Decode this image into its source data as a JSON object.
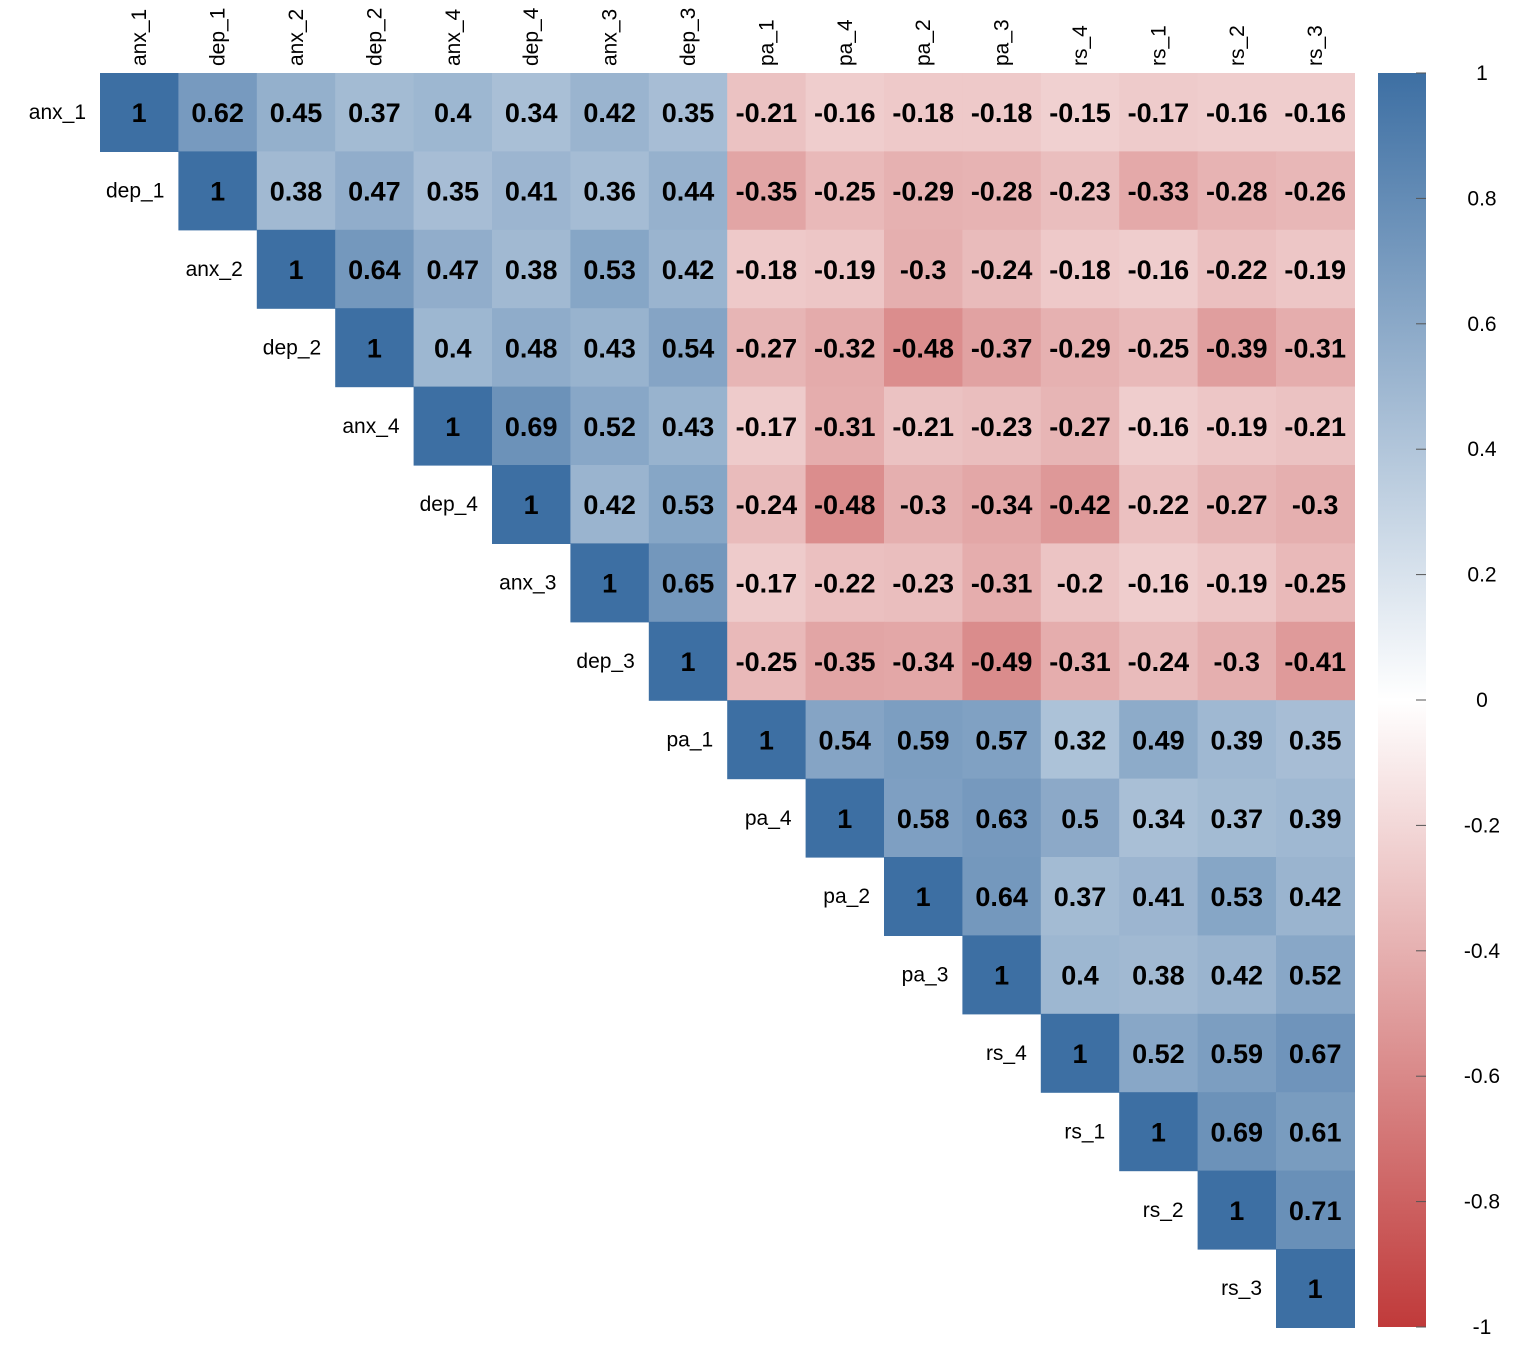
{
  "chart_data": {
    "type": "heatmap",
    "layout": "upper-triangle",
    "variables": [
      "anx_1",
      "dep_1",
      "anx_2",
      "dep_2",
      "anx_4",
      "dep_4",
      "anx_3",
      "dep_3",
      "pa_1",
      "pa_4",
      "pa_2",
      "pa_3",
      "rs_4",
      "rs_1",
      "rs_2",
      "rs_3"
    ],
    "matrix": [
      [
        1,
        0.62,
        0.45,
        0.37,
        0.4,
        0.34,
        0.42,
        0.35,
        -0.21,
        -0.16,
        -0.18,
        -0.18,
        -0.15,
        -0.17,
        -0.16,
        -0.16
      ],
      [
        null,
        1,
        0.38,
        0.47,
        0.35,
        0.41,
        0.36,
        0.44,
        -0.35,
        -0.25,
        -0.29,
        -0.28,
        -0.23,
        -0.33,
        -0.28,
        -0.26
      ],
      [
        null,
        null,
        1,
        0.64,
        0.47,
        0.38,
        0.53,
        0.42,
        -0.18,
        -0.19,
        -0.3,
        -0.24,
        -0.18,
        -0.16,
        -0.22,
        -0.19
      ],
      [
        null,
        null,
        null,
        1,
        0.4,
        0.48,
        0.43,
        0.54,
        -0.27,
        -0.32,
        -0.48,
        -0.37,
        -0.29,
        -0.25,
        -0.39,
        -0.31
      ],
      [
        null,
        null,
        null,
        null,
        1,
        0.69,
        0.52,
        0.43,
        -0.17,
        -0.31,
        -0.21,
        -0.23,
        -0.27,
        -0.16,
        -0.19,
        -0.21
      ],
      [
        null,
        null,
        null,
        null,
        null,
        1,
        0.42,
        0.53,
        -0.24,
        -0.48,
        -0.3,
        -0.34,
        -0.42,
        -0.22,
        -0.27,
        -0.3
      ],
      [
        null,
        null,
        null,
        null,
        null,
        null,
        1,
        0.65,
        -0.17,
        -0.22,
        -0.23,
        -0.31,
        -0.2,
        -0.16,
        -0.19,
        -0.25
      ],
      [
        null,
        null,
        null,
        null,
        null,
        null,
        null,
        1,
        -0.25,
        -0.35,
        -0.34,
        -0.49,
        -0.31,
        -0.24,
        -0.3,
        -0.41
      ],
      [
        null,
        null,
        null,
        null,
        null,
        null,
        null,
        null,
        1,
        0.54,
        0.59,
        0.57,
        0.32,
        0.49,
        0.39,
        0.35
      ],
      [
        null,
        null,
        null,
        null,
        null,
        null,
        null,
        null,
        null,
        1,
        0.58,
        0.63,
        0.5,
        0.34,
        0.37,
        0.39
      ],
      [
        null,
        null,
        null,
        null,
        null,
        null,
        null,
        null,
        null,
        null,
        1,
        0.64,
        0.37,
        0.41,
        0.53,
        0.42
      ],
      [
        null,
        null,
        null,
        null,
        null,
        null,
        null,
        null,
        null,
        null,
        null,
        1,
        0.4,
        0.38,
        0.42,
        0.52
      ],
      [
        null,
        null,
        null,
        null,
        null,
        null,
        null,
        null,
        null,
        null,
        null,
        null,
        1,
        0.52,
        0.59,
        0.67
      ],
      [
        null,
        null,
        null,
        null,
        null,
        null,
        null,
        null,
        null,
        null,
        null,
        null,
        null,
        1,
        0.69,
        0.61
      ],
      [
        null,
        null,
        null,
        null,
        null,
        null,
        null,
        null,
        null,
        null,
        null,
        null,
        null,
        null,
        1,
        0.71
      ],
      [
        null,
        null,
        null,
        null,
        null,
        null,
        null,
        null,
        null,
        null,
        null,
        null,
        null,
        null,
        null,
        1
      ]
    ],
    "color_scale": {
      "min": -1,
      "max": 1,
      "low_color": "#c03a3a",
      "mid_color": "#ffffff",
      "high_color": "#3d6fa3",
      "ticks": [
        1,
        0.8,
        0.6,
        0.4,
        0.2,
        0,
        -0.2,
        -0.4,
        -0.6,
        -0.8,
        -1
      ],
      "tick_labels": [
        "1",
        "0.8",
        "0.6",
        "0.4",
        "0.2",
        "0",
        "-0.2",
        "-0.4",
        "-0.6",
        "-0.8",
        "-1"
      ]
    },
    "legend": "right",
    "title": "",
    "xlabel": "",
    "ylabel": ""
  }
}
